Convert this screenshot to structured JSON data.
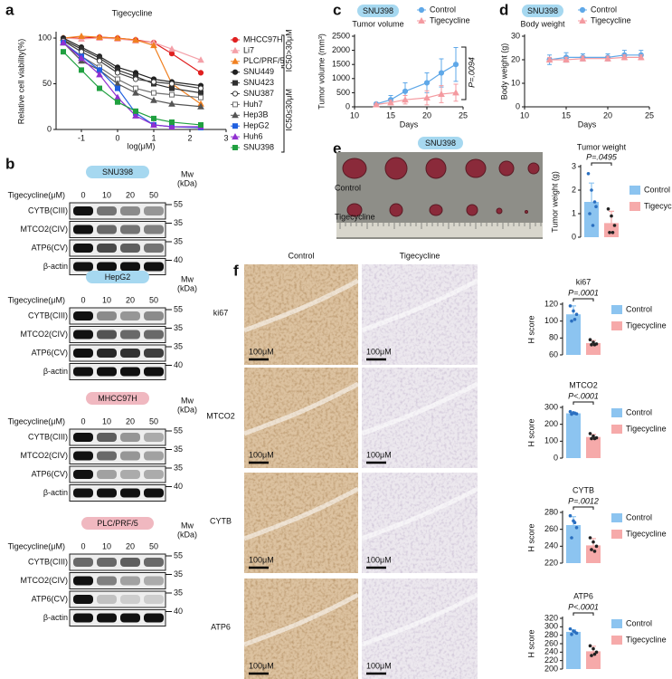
{
  "panel_labels": [
    "a",
    "b",
    "c",
    "d",
    "e",
    "f"
  ],
  "chart_data": [
    {
      "type": "line",
      "title": "Tigecycline",
      "xlabel": "log(μM)",
      "ylabel": "Relative cell viability(%)",
      "x": [
        -1.5,
        -1,
        -0.5,
        0,
        0.5,
        1,
        1.5,
        2.3
      ],
      "xlim": [
        -1.7,
        3
      ],
      "xticks": [
        -1,
        0,
        1,
        2,
        3
      ],
      "ylim": [
        0,
        105
      ],
      "yticks": [
        0,
        50,
        100
      ],
      "bracket_labels": [
        "IC50>30μM",
        "IC50≤30μM"
      ],
      "series": [
        {
          "name": "MHCC97H",
          "color": "#e02020",
          "marker": "circle",
          "values": [
            100,
            100,
            101,
            100,
            98,
            95,
            83,
            62
          ]
        },
        {
          "name": "Li7",
          "color": "#f4a0a8",
          "marker": "triangle",
          "values": [
            100,
            99,
            100,
            99,
            97,
            95,
            88,
            76
          ]
        },
        {
          "name": "PLC/PRF/5",
          "color": "#f08020",
          "marker": "triangle",
          "values": [
            100,
            102,
            101,
            100,
            98,
            92,
            50,
            28
          ]
        },
        {
          "name": "SNU449",
          "color": "#202020",
          "marker": "circle",
          "values": [
            100,
            90,
            80,
            68,
            62,
            55,
            52,
            48
          ]
        },
        {
          "name": "SNU423",
          "color": "#303030",
          "marker": "square",
          "values": [
            98,
            88,
            78,
            65,
            58,
            50,
            45,
            40
          ]
        },
        {
          "name": "SNU387",
          "color": "#404040",
          "marker": "open-circle",
          "values": [
            97,
            85,
            75,
            62,
            55,
            52,
            50,
            45
          ]
        },
        {
          "name": "Huh7",
          "color": "#707070",
          "marker": "open-square",
          "values": [
            95,
            80,
            68,
            55,
            45,
            40,
            38,
            35
          ]
        },
        {
          "name": "Hep3B",
          "color": "#555555",
          "marker": "triangle",
          "values": [
            95,
            75,
            65,
            50,
            40,
            32,
            28,
            25
          ]
        },
        {
          "name": "HepG2",
          "color": "#2060e0",
          "marker": "square",
          "values": [
            95,
            80,
            65,
            45,
            18,
            5,
            3,
            2
          ]
        },
        {
          "name": "Huh6",
          "color": "#9030d0",
          "marker": "triangle",
          "values": [
            95,
            78,
            60,
            35,
            15,
            5,
            3,
            3
          ]
        },
        {
          "name": "SNU398",
          "color": "#20a040",
          "marker": "square",
          "values": [
            85,
            65,
            45,
            30,
            20,
            12,
            8,
            5
          ]
        }
      ]
    },
    {
      "type": "line",
      "badge": "SNU398",
      "subtitle": "Tumor volume",
      "xlabel": "Days",
      "ylabel": "Tumor volume (mm³)",
      "x": [
        13,
        15,
        17,
        20,
        22,
        24
      ],
      "xlim": [
        10,
        25
      ],
      "xticks": [
        10,
        15,
        20,
        25
      ],
      "ylim": [
        0,
        2500
      ],
      "yticks": [
        0,
        500,
        1000,
        1500,
        2000,
        2500
      ],
      "annotation": "P=.0094",
      "series": [
        {
          "name": "Control",
          "color": "#5fa8e8",
          "marker": "circle",
          "values": [
            100,
            250,
            550,
            850,
            1200,
            1500
          ],
          "errors": [
            50,
            150,
            300,
            350,
            500,
            600
          ]
        },
        {
          "name": "Tigecycline",
          "color": "#f49aa0",
          "marker": "triangle",
          "values": [
            80,
            150,
            250,
            320,
            450,
            500
          ],
          "errors": [
            30,
            80,
            150,
            250,
            300,
            300
          ]
        }
      ]
    },
    {
      "type": "line",
      "badge": "SNU398",
      "subtitle": "Body weight",
      "xlabel": "Days",
      "ylabel": "Body weight (g)",
      "x": [
        13,
        15,
        17,
        20,
        22,
        24
      ],
      "xlim": [
        10,
        25
      ],
      "xticks": [
        10,
        15,
        20,
        25
      ],
      "ylim": [
        0,
        30
      ],
      "yticks": [
        0,
        10,
        20,
        30
      ],
      "series": [
        {
          "name": "Control",
          "color": "#5fa8e8",
          "marker": "circle",
          "values": [
            20,
            21,
            21,
            21,
            22,
            22
          ],
          "errors": [
            2,
            2,
            1.5,
            1.5,
            2,
            2
          ]
        },
        {
          "name": "Tigecycline",
          "color": "#f49aa0",
          "marker": "triangle",
          "values": [
            20,
            20,
            20.5,
            20.5,
            21,
            21
          ],
          "errors": [
            1,
            1,
            1,
            1,
            1,
            1
          ]
        }
      ]
    },
    {
      "type": "bar",
      "title": "Tumor weight",
      "ylabel": "Tumor weight (g)",
      "annotation": "P=.0495",
      "categories": [
        "Control",
        "Tigecycline"
      ],
      "colors": [
        "#8cc4f0",
        "#f6aaaa"
      ],
      "values": [
        1.5,
        0.6
      ],
      "errors": [
        0.8,
        0.5
      ],
      "points": [
        [
          2.7,
          2.0,
          1.5,
          1.0,
          0.5,
          1.3
        ],
        [
          1.2,
          0.9,
          0.5,
          0.2,
          0.2
        ]
      ],
      "ylim": [
        0,
        3
      ],
      "yticks": [
        0,
        1,
        2,
        3
      ]
    },
    {
      "type": "bar",
      "title": "ki67",
      "ylabel": "H score",
      "annotation": "P=.0001",
      "categories": [
        "Control",
        "Tigecycline"
      ],
      "colors": [
        "#8cc4f0",
        "#f6aaaa"
      ],
      "values": [
        108,
        74
      ],
      "errors": [
        10,
        3
      ],
      "points": [
        [
          118,
          112,
          108,
          100,
          102
        ],
        [
          78,
          75,
          73,
          72,
          72
        ]
      ],
      "ylim": [
        60,
        120
      ],
      "yticks": [
        60,
        80,
        100,
        120
      ]
    },
    {
      "type": "bar",
      "title": "MTCO2",
      "ylabel": "H score",
      "annotation": "P<.0001",
      "categories": [
        "Control",
        "Tigecycline"
      ],
      "colors": [
        "#8cc4f0",
        "#f6aaaa"
      ],
      "values": [
        265,
        125
      ],
      "errors": [
        8,
        15
      ],
      "points": [
        [
          275,
          268,
          262,
          260,
          265
        ],
        [
          145,
          130,
          120,
          115,
          115
        ]
      ],
      "ylim": [
        0,
        300
      ],
      "yticks": [
        0,
        100,
        200,
        300
      ]
    },
    {
      "type": "bar",
      "title": "CYTB",
      "ylabel": "H score",
      "annotation": "P=.0012",
      "categories": [
        "Control",
        "Tigecycline"
      ],
      "colors": [
        "#8cc4f0",
        "#f6aaaa"
      ],
      "values": [
        265,
        241
      ],
      "errors": [
        10,
        8
      ],
      "points": [
        [
          276,
          270,
          262,
          250,
          268
        ],
        [
          250,
          245,
          240,
          236,
          234
        ]
      ],
      "ylim": [
        220,
        280
      ],
      "yticks": [
        220,
        240,
        260,
        280
      ]
    },
    {
      "type": "bar",
      "title": "ATP6",
      "ylabel": "H score",
      "annotation": "P<.0001",
      "categories": [
        "Control",
        "Tigecycline"
      ],
      "colors": [
        "#8cc4f0",
        "#f6aaaa"
      ],
      "values": [
        288,
        242
      ],
      "errors": [
        5,
        12
      ],
      "points": [
        [
          295,
          290,
          285,
          282,
          288
        ],
        [
          255,
          248,
          240,
          232,
          235
        ]
      ],
      "ylim": [
        200,
        320
      ],
      "yticks": [
        200,
        220,
        240,
        260,
        280,
        300,
        320
      ]
    }
  ],
  "blots": {
    "cell_lines": [
      "SNU398",
      "HepG2",
      "MHCC97H",
      "PLC/PRF/5"
    ],
    "xlabel": "Tigecycline(μM)",
    "doses": [
      0,
      10,
      20,
      50
    ],
    "mw_title": "Mw",
    "mw_unit": "(kDa)",
    "rows": [
      "CYTB(CIII)",
      "MTCO2(CIV)",
      "ATP6(CV)",
      "β-actin"
    ],
    "mw_markers": [
      55,
      35,
      35,
      40
    ]
  },
  "tumor_photo": {
    "badge": "SNU398",
    "rows": [
      "Control",
      "Tigecycline"
    ]
  },
  "ihc": {
    "columns": [
      "Control",
      "Tigecycline"
    ],
    "rows": [
      "ki67",
      "MTCO2",
      "CYTB",
      "ATP6"
    ],
    "scale_bar": "100μM"
  }
}
